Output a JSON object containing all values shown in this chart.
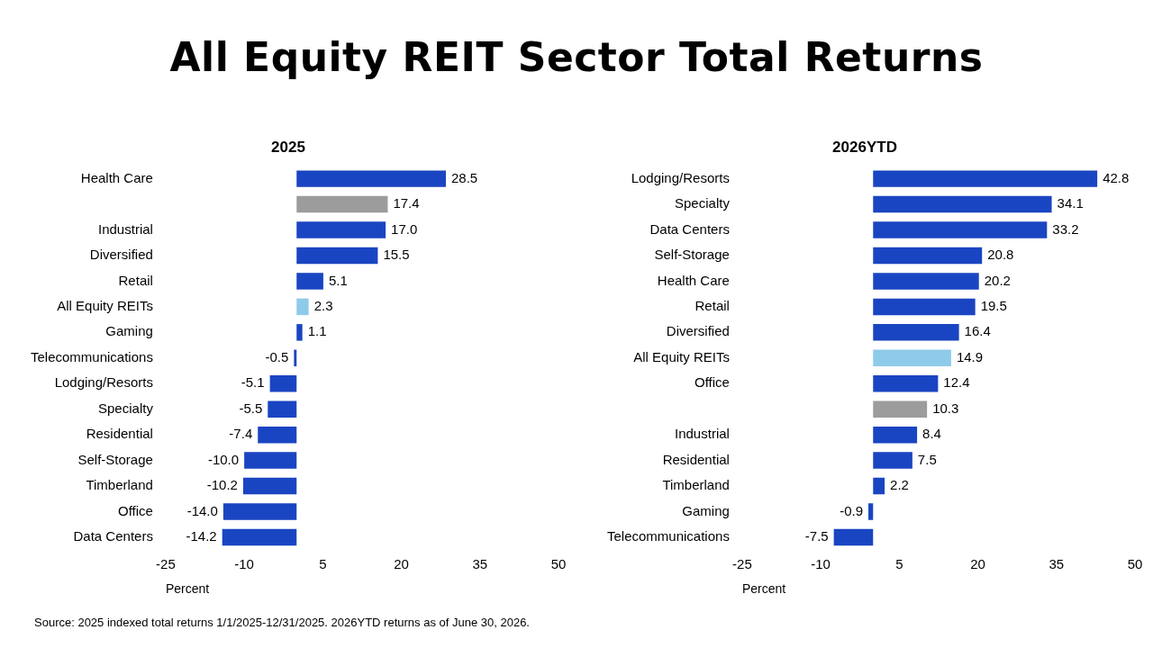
{
  "chart_data": [
    {
      "type": "bar",
      "orientation": "horizontal",
      "title": "All Equity REIT Sector Total Returns",
      "subtitle": "2025",
      "xlabel": "Percent",
      "categories": [
        "Health Care",
        null,
        "Industrial",
        "Diversified",
        "Retail",
        "All Equity REITs",
        "Gaming",
        "Telecommunications",
        "Lodging/Resorts",
        "Specialty",
        "Residential",
        "Self-Storage",
        "Timberland",
        "Office",
        "Data Centers"
      ],
      "values": [
        28.5,
        17.4,
        17.0,
        15.5,
        5.1,
        2.3,
        1.1,
        -0.5,
        -5.1,
        -5.5,
        -7.4,
        -10.0,
        -10.2,
        -14.0,
        -14.2
      ],
      "value_labels": [
        "28.5",
        "17.4",
        "17.0",
        "15.5",
        "5.1",
        "2.3",
        "1.1",
        "-0.5",
        "-5.1",
        "-5.5",
        "-7.4",
        "-10.0",
        "-10.2",
        "-14.0",
        "-14.2"
      ],
      "colors": [
        "#1a45c2",
        "#9c9c9c",
        "#1a45c2",
        "#1a45c2",
        "#1a45c2",
        "#8ecbea",
        "#1a45c2",
        "#1a45c2",
        "#1a45c2",
        "#1a45c2",
        "#1a45c2",
        "#1a45c2",
        "#1a45c2",
        "#1a45c2",
        "#1a45c2"
      ],
      "xlim": [
        -25,
        50
      ],
      "xticks": [
        -25,
        -10,
        5,
        20,
        35,
        50
      ],
      "annotations": [
        "Source: 2025 indexed total returns 1/1/2025-12/31/2025. 2026YTD returns as of June 30, 2026."
      ]
    },
    {
      "type": "bar",
      "orientation": "horizontal",
      "subtitle": "2026YTD",
      "xlabel": "Percent",
      "categories": [
        "Lodging/Resorts",
        "Specialty",
        "Data Centers",
        "Self-Storage",
        "Health Care",
        "Retail",
        "Diversified",
        "All Equity REITs",
        "Office",
        null,
        "Industrial",
        "Residential",
        "Timberland",
        "Gaming",
        "Telecommunications"
      ],
      "values": [
        42.8,
        34.1,
        33.2,
        20.8,
        20.2,
        19.5,
        16.4,
        14.9,
        12.4,
        10.3,
        8.4,
        7.5,
        2.2,
        -0.9,
        -7.5
      ],
      "value_labels": [
        "42.8",
        "34.1",
        "33.2",
        "20.8",
        "20.2",
        "19.5",
        "16.4",
        "14.9",
        "12.4",
        "10.3",
        "8.4",
        "7.5",
        "2.2",
        "-0.9",
        "-7.5"
      ],
      "colors": [
        "#1a45c2",
        "#1a45c2",
        "#1a45c2",
        "#1a45c2",
        "#1a45c2",
        "#1a45c2",
        "#1a45c2",
        "#8ecbea",
        "#1a45c2",
        "#9c9c9c",
        "#1a45c2",
        "#1a45c2",
        "#1a45c2",
        "#1a45c2",
        "#1a45c2"
      ],
      "xlim": [
        -25,
        50
      ],
      "xticks": [
        -25,
        -10,
        5,
        20,
        35,
        50
      ]
    }
  ]
}
